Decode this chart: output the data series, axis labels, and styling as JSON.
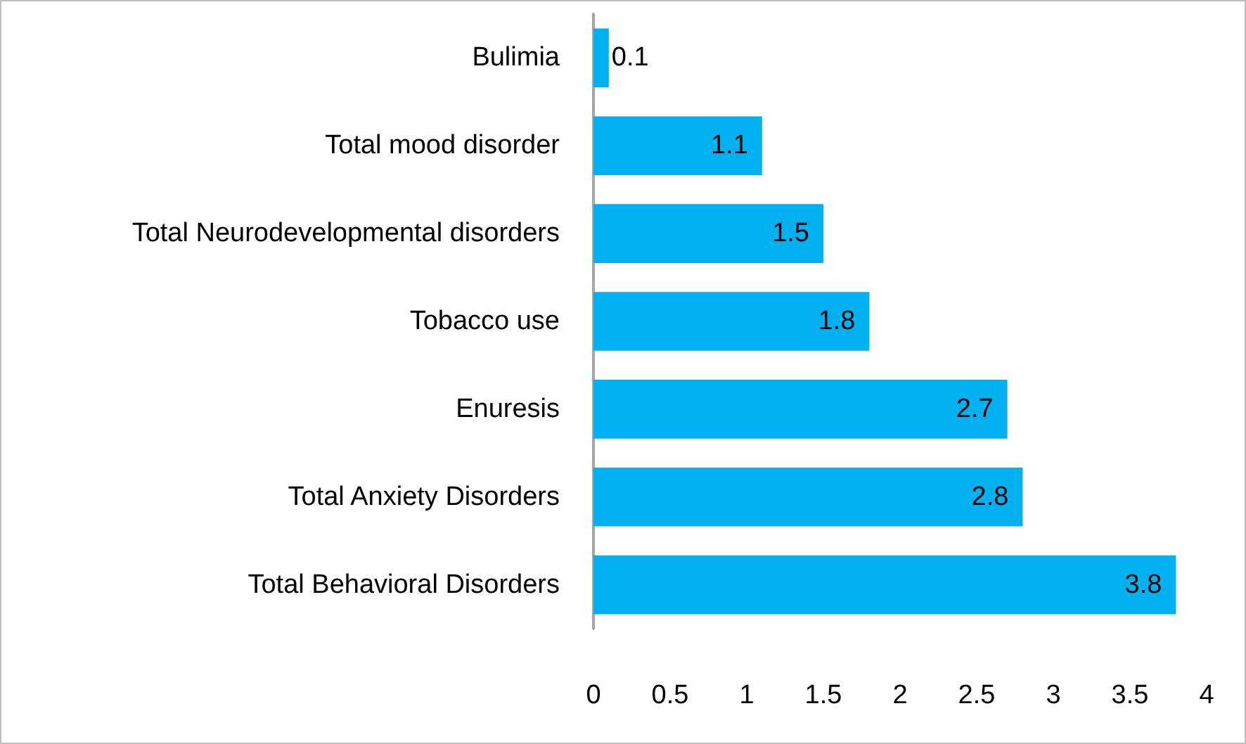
{
  "chart_data": {
    "type": "bar",
    "orientation": "horizontal",
    "categories": [
      "Bulimia",
      "Total mood disorder",
      "Total Neurodevelopmental disorders",
      "Tobacco use",
      "Enuresis",
      "Total Anxiety Disorders",
      "Total Behavioral Disorders"
    ],
    "values": [
      0.1,
      1.1,
      1.5,
      1.8,
      2.7,
      2.8,
      3.8
    ],
    "color": "#00b0f0",
    "xlim": [
      0,
      4
    ],
    "xticks": [
      0,
      0.5,
      1,
      1.5,
      2,
      2.5,
      3,
      3.5,
      4
    ],
    "grid": false,
    "data_labels": true
  }
}
